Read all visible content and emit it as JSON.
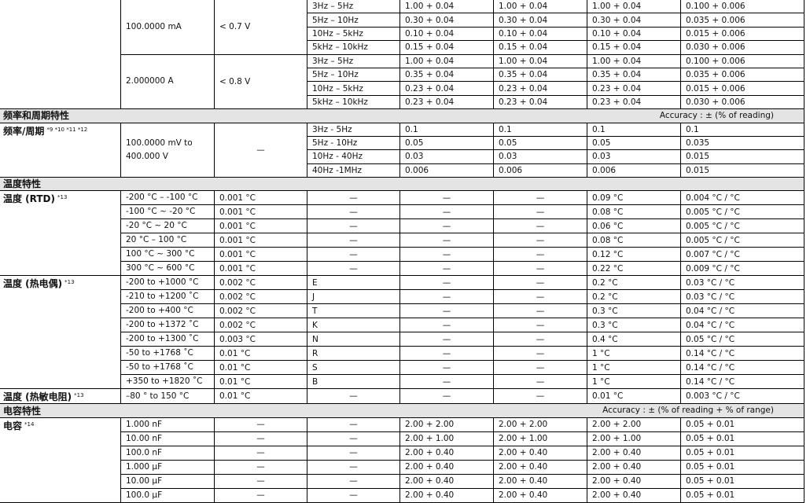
{
  "blocks": [
    {
      "type": "group",
      "label": "",
      "sup": "",
      "subgroups": [
        {
          "range": "100.0000 mA",
          "col3": "< 0.7 V",
          "rows": [
            [
              "3Hz – 5Hz",
              "1.00 + 0.04",
              "1.00 + 0.04",
              "1.00 + 0.04",
              "0.100 + 0.006"
            ],
            [
              "5Hz – 10Hz",
              "0.30 + 0.04",
              "0.30 + 0.04",
              "0.30 + 0.04",
              "0.035 + 0.006"
            ],
            [
              "10Hz – 5kHz",
              "0.10 + 0.04",
              "0.10 + 0.04",
              "0.10 + 0.04",
              "0.015 + 0.006"
            ],
            [
              "5kHz – 10kHz",
              "0.15 + 0.04",
              "0.15 + 0.04",
              "0.15 + 0.04",
              "0.030 + 0.006"
            ]
          ]
        },
        {
          "range": "2.000000 A",
          "col3": "< 0.8 V",
          "rows": [
            [
              "3Hz – 5Hz",
              "1.00 + 0.04",
              "1.00 + 0.04",
              "1.00 + 0.04",
              "0.100 + 0.006"
            ],
            [
              "5Hz – 10Hz",
              "0.35 + 0.04",
              "0.35 + 0.04",
              "0.35 + 0.04",
              "0.035 + 0.006"
            ],
            [
              "10Hz – 5kHz",
              "0.23 + 0.04",
              "0.23 + 0.04",
              "0.23 + 0.04",
              "0.015 + 0.006"
            ],
            [
              "5kHz – 10kHz",
              "0.23 + 0.04",
              "0.23 + 0.04",
              "0.23 + 0.04",
              "0.030 + 0.006"
            ]
          ]
        }
      ]
    },
    {
      "type": "section",
      "title": "频率和周期特性",
      "note": "Accuracy : ± (% of reading)"
    },
    {
      "type": "group",
      "label": "频率/周期",
      "sup": "*9 *10 *11 *12",
      "subgroups": [
        {
          "range": "100.0000 mV to\n400.000 V",
          "col3": "—",
          "rows": [
            [
              "3Hz - 5Hz",
              "0.1",
              "0.1",
              "0.1",
              "0.1"
            ],
            [
              "5Hz - 10Hz",
              "0.05",
              "0.05",
              "0.05",
              "0.035"
            ],
            [
              "10Hz - 40Hz",
              "0.03",
              "0.03",
              "0.03",
              "0.015"
            ],
            [
              "40Hz -1MHz",
              "0.006",
              "0.006",
              "0.006",
              "0.015"
            ]
          ]
        }
      ]
    },
    {
      "type": "section",
      "title": "温度特性",
      "note": ""
    },
    {
      "type": "group",
      "label": "温度 (RTD)",
      "sup": "*13",
      "subgroups": [
        {
          "range": "-200 °C – -100 °C",
          "col3": "0.001 °C",
          "rows": [
            [
              "—",
              "—",
              "—",
              "0.09 °C",
              "0.004 °C / °C"
            ]
          ]
        },
        {
          "range": "-100 °C ~ -20 °C",
          "col3": "0.001 °C",
          "rows": [
            [
              "—",
              "—",
              "—",
              "0.08 °C",
              "0.005 °C / °C"
            ]
          ]
        },
        {
          "range": "-20 °C ~ 20 °C",
          "col3": "0.001 °C",
          "rows": [
            [
              "—",
              "—",
              "—",
              "0.06 °C",
              "0.005 °C / °C"
            ]
          ]
        },
        {
          "range": "20 °C – 100 °C",
          "col3": "0.001 °C",
          "rows": [
            [
              "—",
              "—",
              "—",
              "0.08 °C",
              "0.005 °C / °C"
            ]
          ]
        },
        {
          "range": "100 °C ~ 300 °C",
          "col3": "0.001 °C",
          "rows": [
            [
              "—",
              "—",
              "—",
              "0.12 °C",
              "0.007 °C / °C"
            ]
          ]
        },
        {
          "range": "300 °C ~ 600 °C",
          "col3": "0.001 °C",
          "rows": [
            [
              "—",
              "—",
              "—",
              "0.22 °C",
              "0.009 °C / °C"
            ]
          ]
        }
      ]
    },
    {
      "type": "group",
      "label": "温度 (热电偶)",
      "sup": "*13",
      "subgroups": [
        {
          "range": "-200 to +1000 °C",
          "col3": "0.002 °C",
          "rows": [
            [
              "E",
              "—",
              "—",
              "0.2 °C",
              "0.03 °C / °C"
            ]
          ]
        },
        {
          "range": "-210 to +1200 ˚C",
          "col3": "0.002 °C",
          "rows": [
            [
              "J",
              "—",
              "—",
              "0.2 °C",
              "0.03 °C / °C"
            ]
          ]
        },
        {
          "range": "-200 to +400 °C",
          "col3": "0.002 °C",
          "rows": [
            [
              "T",
              "—",
              "—",
              "0.3 °C",
              "0.04 °C / °C"
            ]
          ]
        },
        {
          "range": "-200 to +1372 ˚C",
          "col3": "0.002 °C",
          "rows": [
            [
              "K",
              "—",
              "—",
              "0.3 °C",
              "0.04 °C / °C"
            ]
          ]
        },
        {
          "range": "-200 to +1300 ˚C",
          "col3": "0.003 °C",
          "rows": [
            [
              "N",
              "—",
              "—",
              "0.4 °C",
              "0.05 °C / °C"
            ]
          ]
        },
        {
          "range": "-50 to +1768 ˚C",
          "col3": "0.01 °C",
          "rows": [
            [
              "R",
              "—",
              "—",
              "1 °C",
              "0.14 °C / °C"
            ]
          ]
        },
        {
          "range": "-50 to +1768 ˚C",
          "col3": "0.01 °C",
          "rows": [
            [
              "S",
              "—",
              "—",
              "1 °C",
              "0.14 °C / °C"
            ]
          ]
        },
        {
          "range": "+350 to +1820 ˚C",
          "col3": "0.01 °C",
          "rows": [
            [
              "B",
              "—",
              "—",
              "1 °C",
              "0.14 °C / °C"
            ]
          ]
        }
      ]
    },
    {
      "type": "group",
      "label": "温度 (热敏电阻)",
      "sup": "*13",
      "subgroups": [
        {
          "range": "–80 ° to 150 °C",
          "col3": "0.01 °C",
          "rows": [
            [
              "—",
              "—",
              "—",
              "0.01 °C",
              "0.003 °C / °C"
            ]
          ]
        }
      ]
    },
    {
      "type": "section",
      "title": "电容特性",
      "note": "Accuracy : ± (% of reading + % of range)"
    },
    {
      "type": "group",
      "label": "电容",
      "sup": "*14",
      "subgroups": [
        {
          "range": "1.000 nF",
          "col3": "—",
          "rows": [
            [
              "—",
              "2.00 + 2.00",
              "2.00 + 2.00",
              "2.00 + 2.00",
              "0.05 + 0.01"
            ]
          ]
        },
        {
          "range": "10.00 nF",
          "col3": "—",
          "rows": [
            [
              "—",
              "2.00 + 1.00",
              "2.00 + 1.00",
              "2.00 + 1.00",
              "0.05 + 0.01"
            ]
          ]
        },
        {
          "range": "100.0 nF",
          "col3": "—",
          "rows": [
            [
              "—",
              "2.00 + 0.40",
              "2.00 + 0.40",
              "2.00 + 0.40",
              "0.05 + 0.01"
            ]
          ]
        },
        {
          "range": "1.000 µF",
          "col3": "—",
          "rows": [
            [
              "—",
              "2.00 + 0.40",
              "2.00 + 0.40",
              "2.00 + 0.40",
              "0.05 + 0.01"
            ]
          ]
        },
        {
          "range": "10.00 µF",
          "col3": "—",
          "rows": [
            [
              "—",
              "2.00 + 0.40",
              "2.00 + 0.40",
              "2.00 + 0.40",
              "0.05 + 0.01"
            ]
          ]
        },
        {
          "range": "100.0 µF",
          "col3": "—",
          "rows": [
            [
              "—",
              "2.00 + 0.40",
              "2.00 + 0.40",
              "2.00 + 0.40",
              "0.05 + 0.01"
            ]
          ]
        }
      ]
    }
  ]
}
